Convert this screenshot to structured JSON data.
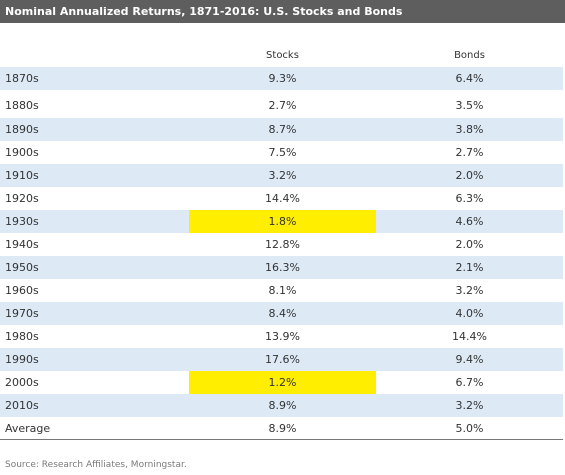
{
  "title": "Nominal Annualized Returns, 1871-2016: U.S. Stocks and Bonds",
  "source": "Source: Research Affiliates, Morningstar.",
  "colors": {
    "title_bar": "#5e5e5e",
    "row_shade": "#ddeaf6",
    "highlight": "#ffee00"
  },
  "chart_data": {
    "type": "table",
    "title": "Nominal Annualized Returns, 1871-2016: U.S. Stocks and Bonds",
    "columns": [
      "",
      "Stocks",
      "Bonds"
    ],
    "rows": [
      {
        "decade": "1870s",
        "stocks": "9.3%",
        "bonds": "6.4%",
        "highlight": false
      },
      {
        "decade": "1880s",
        "stocks": "2.7%",
        "bonds": "3.5%",
        "highlight": false
      },
      {
        "decade": "1890s",
        "stocks": "8.7%",
        "bonds": "3.8%",
        "highlight": false
      },
      {
        "decade": "1900s",
        "stocks": "7.5%",
        "bonds": "2.7%",
        "highlight": false
      },
      {
        "decade": "1910s",
        "stocks": "3.2%",
        "bonds": "2.0%",
        "highlight": false
      },
      {
        "decade": "1920s",
        "stocks": "14.4%",
        "bonds": "6.3%",
        "highlight": false
      },
      {
        "decade": "1930s",
        "stocks": "1.8%",
        "bonds": "4.6%",
        "highlight": true
      },
      {
        "decade": "1940s",
        "stocks": "12.8%",
        "bonds": "2.0%",
        "highlight": false
      },
      {
        "decade": "1950s",
        "stocks": "16.3%",
        "bonds": "2.1%",
        "highlight": false
      },
      {
        "decade": "1960s",
        "stocks": "8.1%",
        "bonds": "3.2%",
        "highlight": false
      },
      {
        "decade": "1970s",
        "stocks": "8.4%",
        "bonds": "4.0%",
        "highlight": false
      },
      {
        "decade": "1980s",
        "stocks": "13.9%",
        "bonds": "14.4%",
        "highlight": false
      },
      {
        "decade": "1990s",
        "stocks": "17.6%",
        "bonds": "9.4%",
        "highlight": false
      },
      {
        "decade": "2000s",
        "stocks": "1.2%",
        "bonds": "6.7%",
        "highlight": true
      },
      {
        "decade": "2010s",
        "stocks": "8.9%",
        "bonds": "3.2%",
        "highlight": false
      },
      {
        "decade": "Average",
        "stocks": "8.9%",
        "bonds": "5.0%",
        "highlight": false
      }
    ]
  }
}
